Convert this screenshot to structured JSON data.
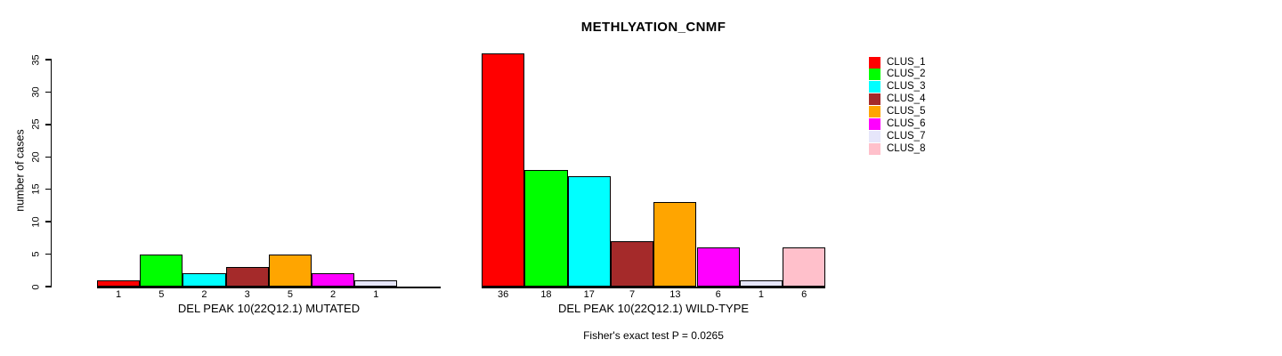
{
  "chart_data": {
    "type": "bar",
    "title": "METHLYATION_CNMF",
    "ylabel": "number of cases",
    "ylim": [
      0,
      36
    ],
    "yticks": [
      0,
      5,
      10,
      15,
      20,
      25,
      30,
      35
    ],
    "grid": false,
    "annotation": "Fisher's exact test P = 0.0265",
    "colors": [
      "#FF0000",
      "#00FF00",
      "#00FFFF",
      "#A52A2A",
      "#FFA500",
      "#FF00FF",
      "#E6E6FA",
      "#FFC0CB"
    ],
    "legend": {
      "position": "right",
      "entries": [
        {
          "label": "CLUS_1",
          "color": "#FF0000"
        },
        {
          "label": "CLUS_2",
          "color": "#00FF00"
        },
        {
          "label": "CLUS_3",
          "color": "#00FFFF"
        },
        {
          "label": "CLUS_4",
          "color": "#A52A2A"
        },
        {
          "label": "CLUS_5",
          "color": "#FFA500"
        },
        {
          "label": "CLUS_6",
          "color": "#FF00FF"
        },
        {
          "label": "CLUS_7",
          "color": "#E6E6FA"
        },
        {
          "label": "CLUS_8",
          "color": "#FFC0CB"
        }
      ]
    },
    "groups": [
      {
        "xlabel": "DEL PEAK 10(22Q12.1) MUTATED",
        "categories": [
          "CLUS_1",
          "CLUS_2",
          "CLUS_3",
          "CLUS_4",
          "CLUS_5",
          "CLUS_6",
          "CLUS_7",
          "CLUS_8"
        ],
        "values": [
          1,
          5,
          2,
          3,
          5,
          2,
          1,
          0
        ],
        "bar_labels": [
          "1",
          "5",
          "2",
          "3",
          "5",
          "2",
          "1",
          ""
        ]
      },
      {
        "xlabel": "DEL PEAK 10(22Q12.1) WILD-TYPE",
        "categories": [
          "CLUS_1",
          "CLUS_2",
          "CLUS_3",
          "CLUS_4",
          "CLUS_5",
          "CLUS_6",
          "CLUS_7",
          "CLUS_8"
        ],
        "values": [
          36,
          18,
          17,
          7,
          13,
          6,
          1,
          6
        ],
        "bar_labels": [
          "36",
          "18",
          "17",
          "7",
          "13",
          "6",
          "1",
          "6"
        ]
      }
    ]
  }
}
